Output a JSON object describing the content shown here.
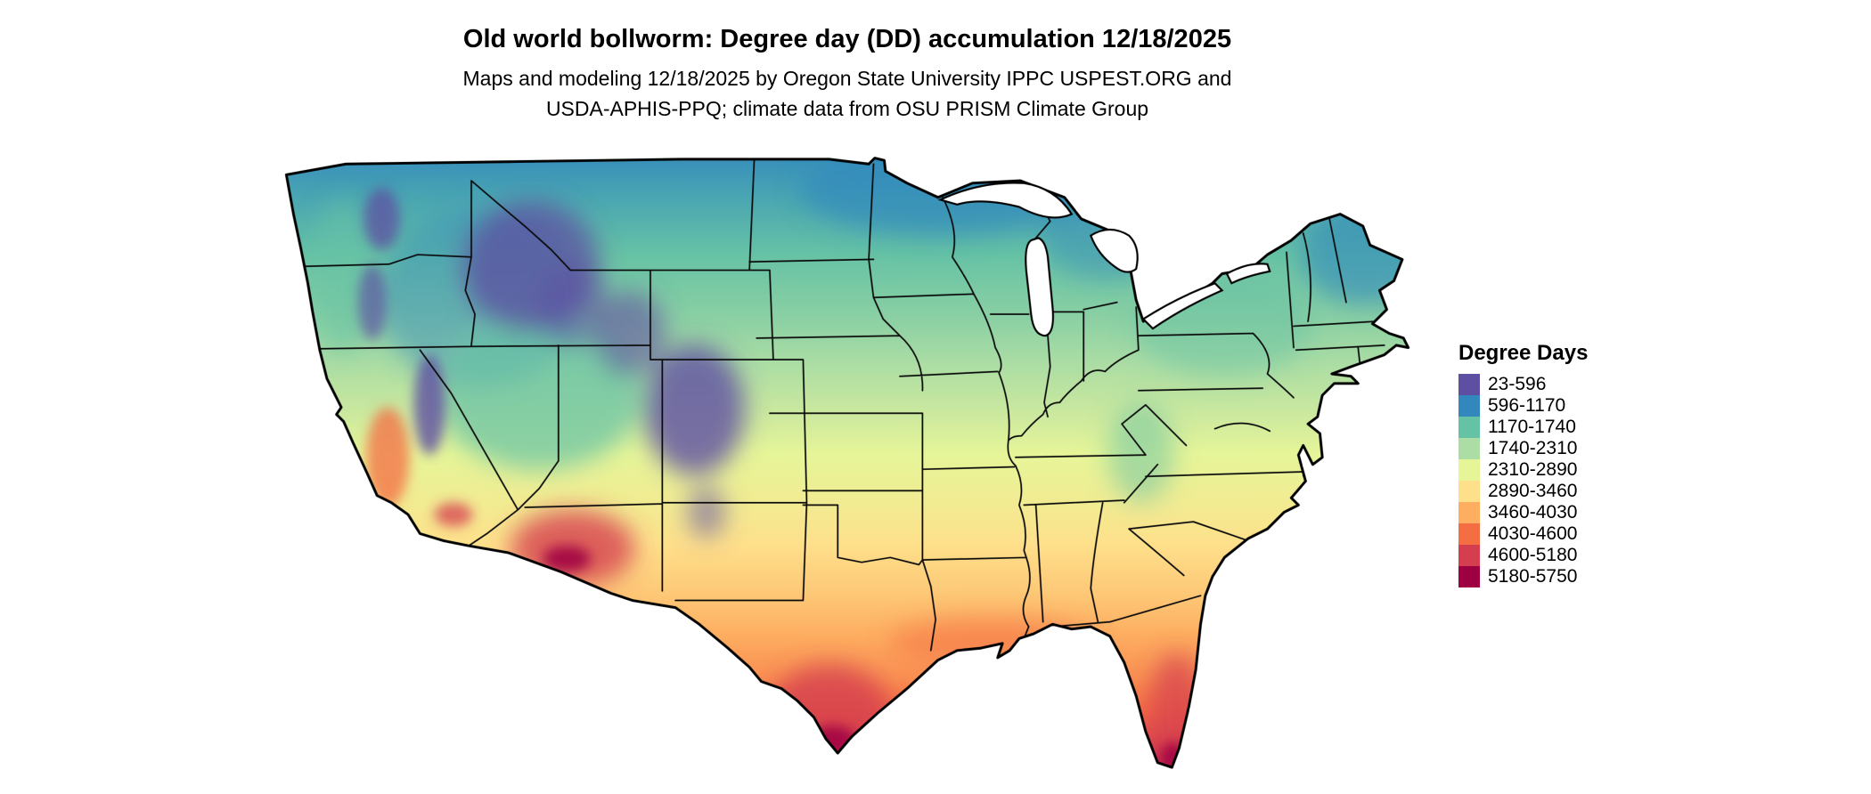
{
  "header": {
    "title": "Old world bollworm: Degree day (DD) accumulation 12/18/2025",
    "subtitle_line1": "Maps and modeling 12/18/2025 by Oregon State University IPPC USPEST.ORG and",
    "subtitle_line2": "USDA-APHIS-PPQ; climate data from OSU PRISM Climate Group"
  },
  "map": {
    "description": "Contiguous United States choropleth raster of accumulated degree days, cool (purple/blue) in the north and mountains, hot (orange/red) in the desert Southwest, south Texas and Florida",
    "outline_color": "#000000",
    "lake_color": "#ffffff"
  },
  "legend": {
    "title": "Degree Days",
    "entries": [
      {
        "label": "23-596",
        "color": "#5e4fa2"
      },
      {
        "label": "596-1170",
        "color": "#3288bd"
      },
      {
        "label": "1170-1740",
        "color": "#66c2a5"
      },
      {
        "label": "1740-2310",
        "color": "#abdda4"
      },
      {
        "label": "2310-2890",
        "color": "#e6f598"
      },
      {
        "label": "2890-3460",
        "color": "#fee08b"
      },
      {
        "label": "3460-4030",
        "color": "#fdae61"
      },
      {
        "label": "4030-4600",
        "color": "#f46d43"
      },
      {
        "label": "4600-5180",
        "color": "#d53e4f"
      },
      {
        "label": "5180-5750",
        "color": "#9e0142"
      }
    ]
  }
}
